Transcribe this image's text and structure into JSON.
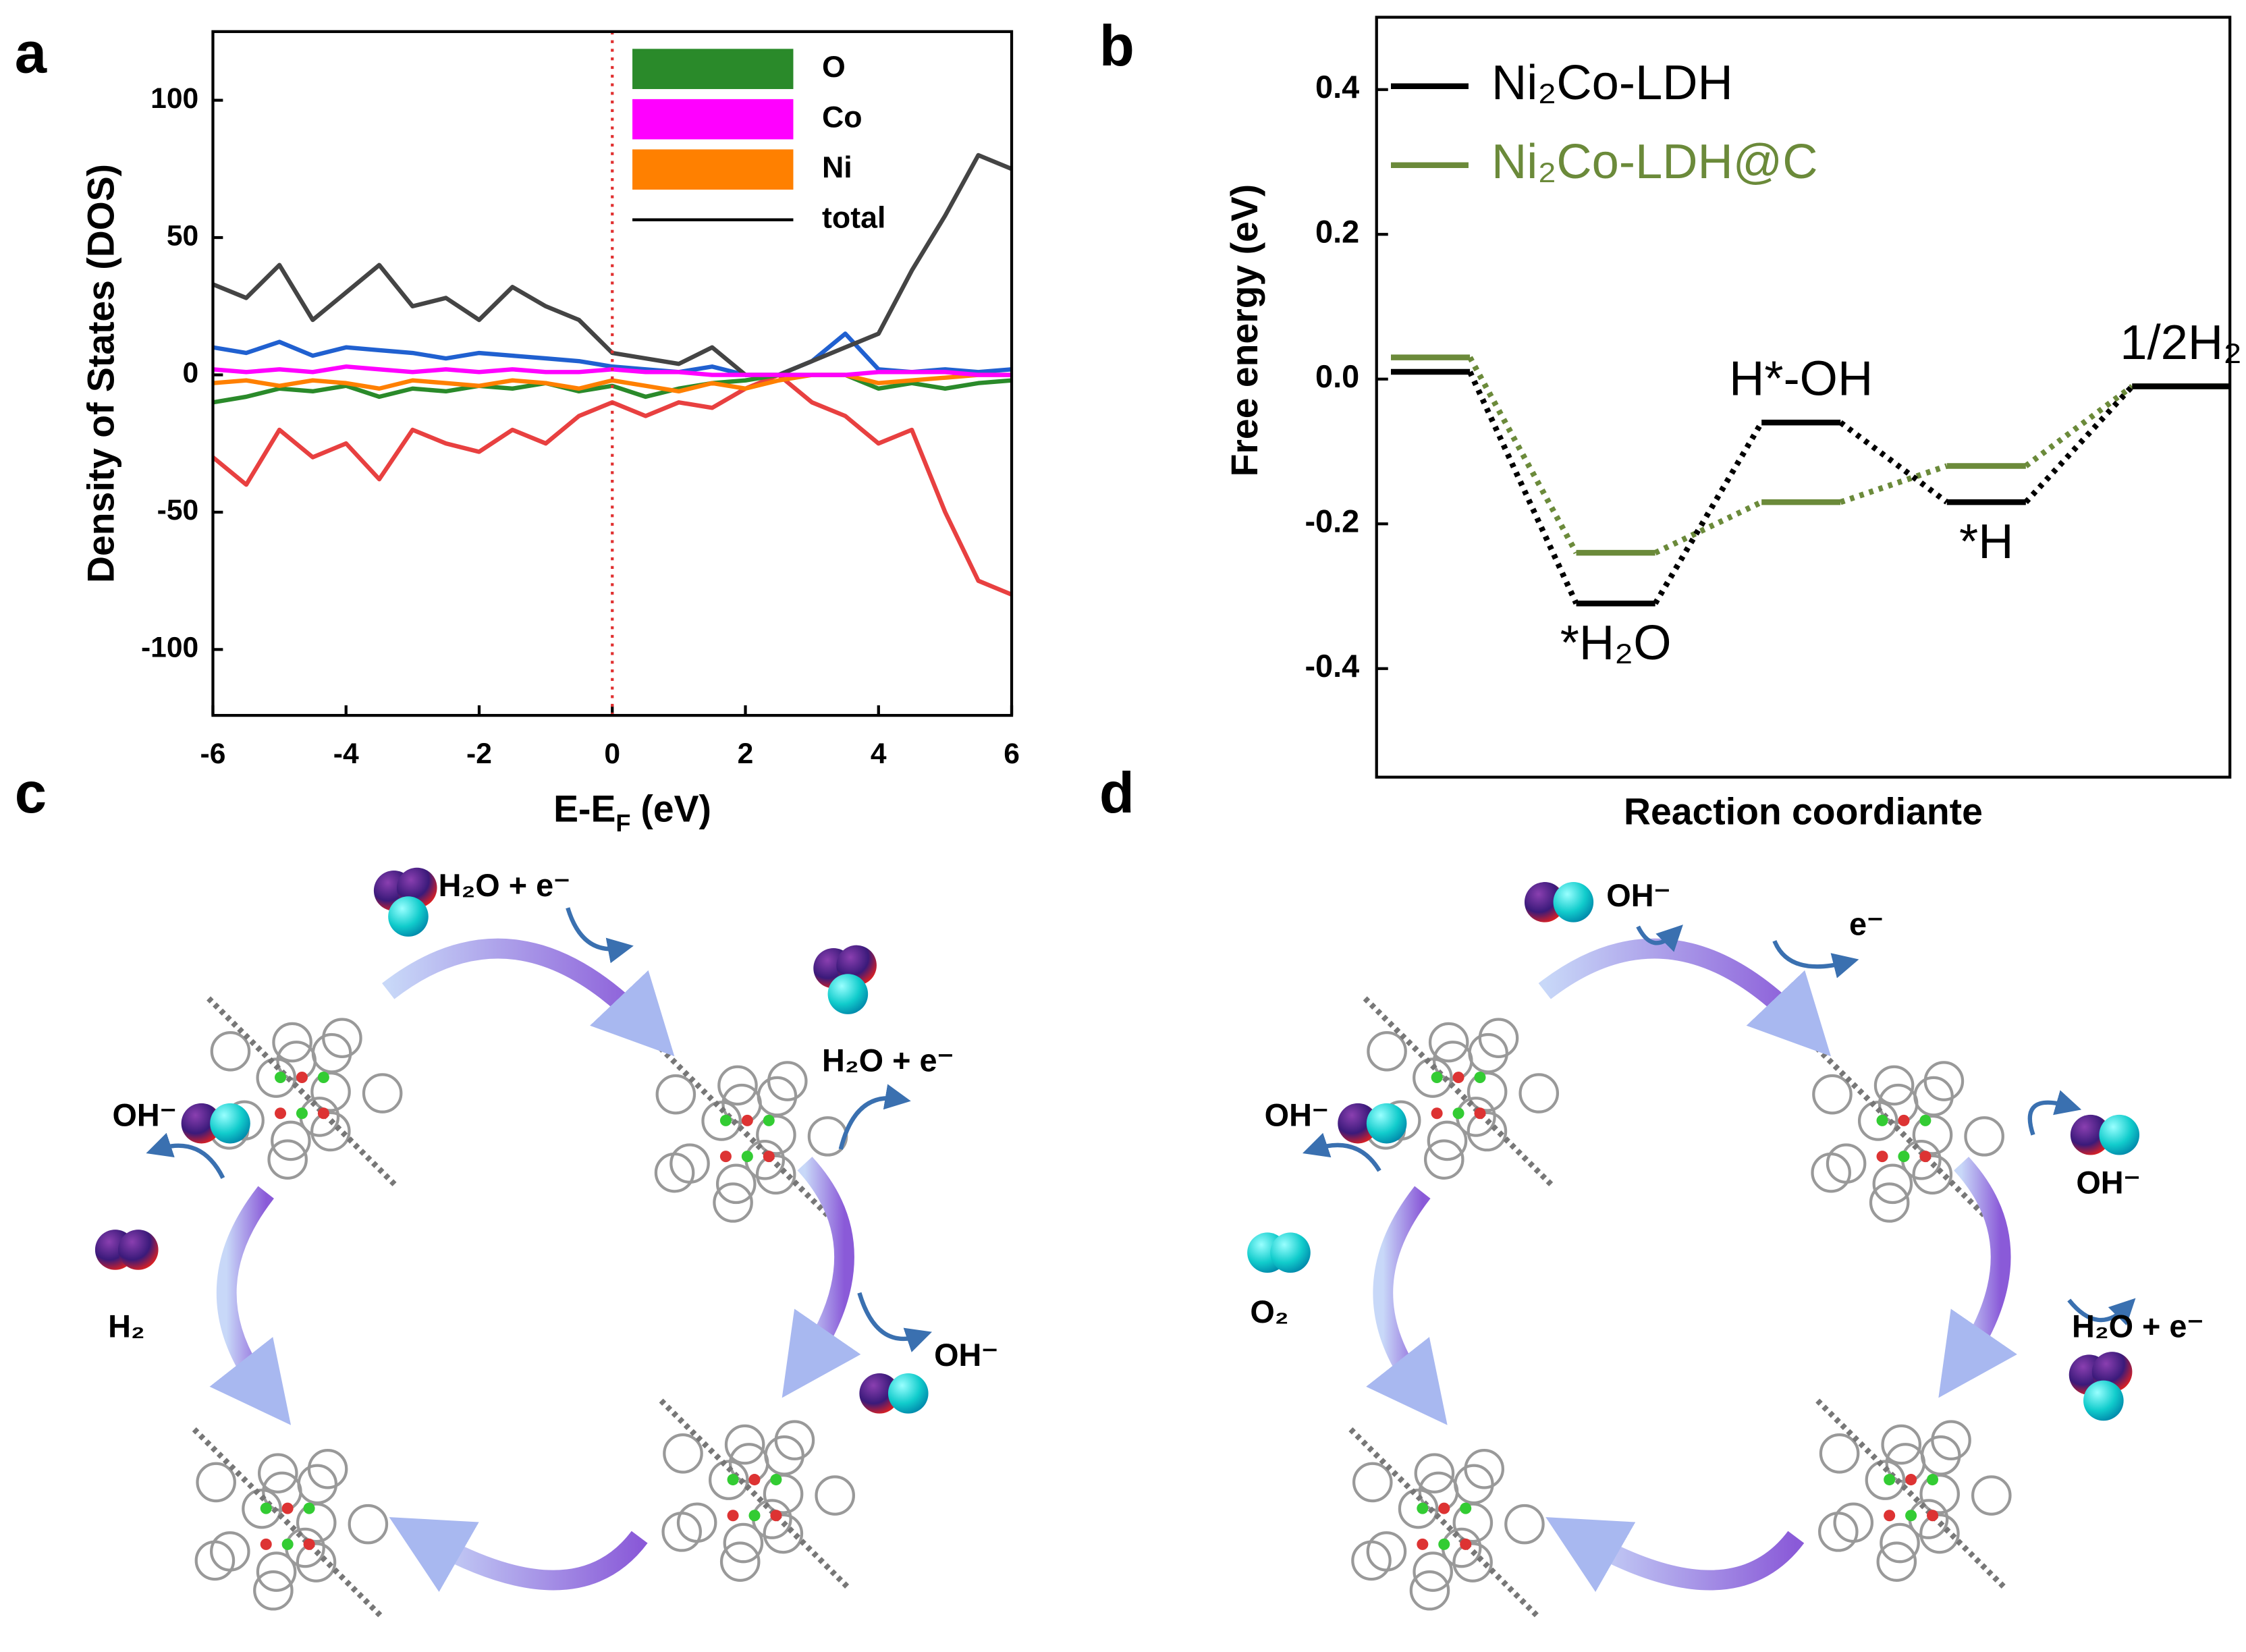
{
  "panel_labels": [
    "a",
    "b",
    "c",
    "d"
  ],
  "chart_data": [
    {
      "type": "line",
      "ylabel": "Density of States (DOS)",
      "xlabel": "E-E",
      "xlabel_sub": "F",
      "xlabel_unit": "(eV)",
      "xlim": [
        -6,
        6
      ],
      "ylim": [
        -124,
        125
      ],
      "xticks": [
        -6,
        -4,
        -2,
        0,
        2,
        4,
        6
      ],
      "yticks": [
        -100,
        -50,
        0,
        50,
        100
      ],
      "vline": 0,
      "vline_color": "#e03030",
      "legend": "upper right",
      "x": [
        -6,
        -5.5,
        -5,
        -4.5,
        -4,
        -3.5,
        -3,
        -2.5,
        -2,
        -1.5,
        -1,
        -0.5,
        0,
        0.5,
        1,
        1.5,
        2,
        2.5,
        3,
        3.5,
        4,
        4.5,
        5,
        5.5,
        6
      ],
      "series": [
        {
          "name": "O",
          "color": "#2a8a2a",
          "values": [
            -10,
            -8,
            -5,
            -6,
            -4,
            -8,
            -5,
            -6,
            -4,
            -5,
            -3,
            -6,
            -4,
            -8,
            -5,
            -3,
            -2,
            0,
            0,
            0,
            -5,
            -3,
            -5,
            -3,
            -2
          ]
        },
        {
          "name": "Co",
          "color": "#ff00ff",
          "values": [
            2,
            1,
            2,
            1,
            3,
            2,
            1,
            2,
            1,
            2,
            1,
            1,
            2,
            1,
            1,
            0,
            0,
            0,
            0,
            0,
            1,
            1,
            1,
            0,
            0
          ]
        },
        {
          "name": "Ni",
          "color": "#ff8000",
          "values": [
            -3,
            -2,
            -4,
            -2,
            -3,
            -5,
            -2,
            -3,
            -4,
            -2,
            -3,
            -5,
            -2,
            -4,
            -6,
            -3,
            -5,
            -2,
            0,
            0,
            -3,
            -2,
            -1,
            0,
            0
          ]
        },
        {
          "name": "total",
          "color": "#000000",
          "draw_color": "#444444",
          "values": [
            33,
            28,
            40,
            20,
            30,
            40,
            25,
            28,
            20,
            32,
            25,
            20,
            8,
            6,
            4,
            10,
            0,
            0,
            5,
            10,
            15,
            38,
            58,
            80,
            75
          ]
        },
        {
          "color": "#e84040",
          "values": [
            -30,
            -40,
            -20,
            -30,
            -25,
            -38,
            -20,
            -25,
            -28,
            -20,
            -25,
            -15,
            -10,
            -15,
            -10,
            -12,
            -5,
            0,
            -10,
            -15,
            -25,
            -20,
            -50,
            -75,
            -80
          ]
        },
        {
          "color": "#2060d0",
          "values": [
            10,
            8,
            12,
            7,
            10,
            9,
            8,
            6,
            8,
            7,
            6,
            5,
            3,
            2,
            1,
            3,
            0,
            0,
            5,
            15,
            2,
            1,
            2,
            1,
            2
          ]
        }
      ]
    },
    {
      "type": "energy-levels",
      "ylabel": "Free energy (eV)",
      "xlabel": "Reaction coordiante",
      "ylim": [
        -0.55,
        0.5
      ],
      "yticks": [
        {
          "value": -0.4,
          "label": "-0.4"
        },
        {
          "value": -0.2,
          "label": "-0.2"
        },
        {
          "value": 0,
          "label": "0.0"
        },
        {
          "value": 0.2,
          "label": "0.2"
        },
        {
          "value": 0.4,
          "label": "0.4"
        }
      ],
      "legend": "upper left",
      "series": [
        {
          "name": "Ni₂Co-LDH",
          "color": "#000000",
          "values": [
            0.01,
            -0.31,
            -0.06,
            -0.17,
            -0.01
          ]
        },
        {
          "name": "Ni₂Co-LDH@C",
          "color": "#6b8a3a",
          "values": [
            0.03,
            -0.24,
            -0.17,
            -0.12,
            -0.01
          ]
        }
      ],
      "annotations": [
        {
          "text": "*H₂O",
          "index": 1,
          "position": "below"
        },
        {
          "text": "H*-OH",
          "index": 2,
          "position": "above"
        },
        {
          "text": "*H",
          "index": 3,
          "position": "below"
        },
        {
          "text": "1/2H₂",
          "index": 4,
          "position": "above"
        }
      ]
    }
  ],
  "diagram_c": {
    "labels": [
      "H₂O + e⁻",
      "H₂O + e⁻",
      "OH⁻",
      "OH⁻",
      "H₂"
    ]
  },
  "diagram_d": {
    "labels": [
      "OH⁻",
      "e⁻",
      "OH⁻",
      "OH⁻",
      "O₂",
      "H₂O + e⁻"
    ]
  }
}
